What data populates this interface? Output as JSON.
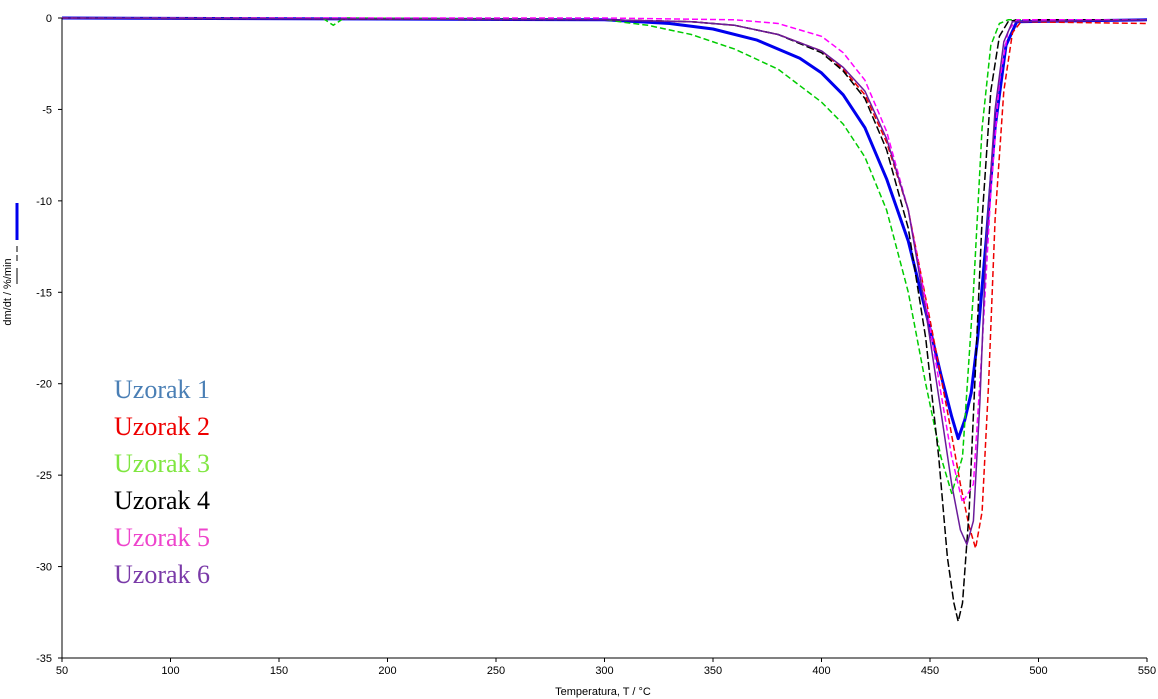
{
  "chart_data": {
    "type": "line",
    "title": "",
    "xlabel": "Temperatura, T / °C",
    "ylabel": "dm/dt / %/min",
    "xlim": [
      50,
      550
    ],
    "ylim": [
      -35,
      0
    ],
    "x_ticks": [
      50,
      100,
      150,
      200,
      250,
      300,
      350,
      400,
      450,
      500,
      550
    ],
    "y_ticks": [
      0,
      -5,
      -10,
      -15,
      -20,
      -25,
      -30,
      -35
    ],
    "grid": false,
    "legend_position": "bottom-left",
    "series": [
      {
        "name": "Uzorak 1",
        "color": "#0000ee",
        "label_color": "#4a7fb5",
        "dash": "solid",
        "x": [
          50,
          300,
          330,
          350,
          370,
          390,
          400,
          410,
          420,
          430,
          440,
          450,
          455,
          460,
          463,
          466,
          469,
          472,
          476,
          480,
          485,
          490,
          550
        ],
        "y": [
          0,
          -0.1,
          -0.3,
          -0.6,
          -1.2,
          -2.2,
          -3.0,
          -4.2,
          -6.0,
          -8.8,
          -12.2,
          -17.0,
          -19.5,
          -21.8,
          -23.0,
          -22.0,
          -20.5,
          -17.5,
          -12.0,
          -6.0,
          -1.5,
          -0.2,
          -0.1
        ]
      },
      {
        "name": "Uzorak 2",
        "color": "#ee0000",
        "label_color": "#ee0000",
        "dash": "6,3",
        "x": [
          50,
          300,
          340,
          360,
          380,
          400,
          410,
          420,
          430,
          440,
          450,
          458,
          464,
          468,
          471,
          474,
          477,
          480,
          484,
          488,
          492,
          550
        ],
        "y": [
          0,
          -0.1,
          -0.2,
          -0.4,
          -0.9,
          -1.8,
          -2.8,
          -4.2,
          -6.8,
          -10.5,
          -16.5,
          -21.5,
          -25.5,
          -27.8,
          -29.0,
          -27.0,
          -20.0,
          -11.0,
          -4.0,
          -0.8,
          -0.2,
          -0.3
        ]
      },
      {
        "name": "Uzorak 3",
        "color": "#00cc00",
        "label_color": "#7fe640",
        "dash": "6,3",
        "x": [
          50,
          170,
          175,
          180,
          300,
          320,
          340,
          360,
          380,
          400,
          410,
          420,
          430,
          440,
          448,
          455,
          460,
          465,
          470,
          474,
          478,
          482,
          486,
          550
        ],
        "y": [
          0,
          0,
          -0.4,
          0,
          -0.1,
          -0.4,
          -0.9,
          -1.7,
          -2.8,
          -4.6,
          -5.8,
          -7.6,
          -10.5,
          -15.0,
          -20.0,
          -24.0,
          -26.0,
          -24.0,
          -15.0,
          -6.0,
          -1.5,
          -0.3,
          -0.1,
          -0.1
        ]
      },
      {
        "name": "Uzorak 4",
        "color": "#000000",
        "label_color": "#000000",
        "dash": "8,3",
        "x": [
          50,
          300,
          340,
          360,
          380,
          400,
          410,
          420,
          430,
          440,
          448,
          454,
          458,
          461,
          463,
          465,
          468,
          471,
          474,
          478,
          482,
          486,
          490,
          550
        ],
        "y": [
          0,
          -0.1,
          -0.2,
          -0.4,
          -0.9,
          -1.9,
          -2.9,
          -4.4,
          -7.2,
          -11.5,
          -17.5,
          -24.0,
          -29.5,
          -32.0,
          -33.0,
          -32.0,
          -27.0,
          -19.0,
          -11.0,
          -4.0,
          -1.0,
          -0.2,
          -0.1,
          -0.1
        ]
      },
      {
        "name": "Uzorak 5",
        "color": "#ff00ff",
        "label_color": "#ee44cc",
        "dash": "6,3",
        "x": [
          50,
          300,
          360,
          380,
          400,
          410,
          420,
          430,
          440,
          448,
          455,
          460,
          465,
          470,
          474,
          478,
          482,
          486,
          490,
          550
        ],
        "y": [
          0,
          0,
          -0.1,
          -0.3,
          -1.0,
          -1.9,
          -3.4,
          -6.2,
          -10.5,
          -15.5,
          -20.5,
          -24.0,
          -26.5,
          -25.5,
          -18.0,
          -9.5,
          -3.5,
          -0.7,
          -0.1,
          -0.1
        ]
      },
      {
        "name": "Uzorak 6",
        "color": "#6a1b9a",
        "label_color": "#7a3aa8",
        "dash": "solid",
        "x": [
          50,
          300,
          340,
          360,
          380,
          400,
          410,
          420,
          430,
          440,
          448,
          455,
          460,
          464,
          467,
          470,
          473,
          476,
          480,
          484,
          488,
          550
        ],
        "y": [
          0,
          -0.1,
          -0.2,
          -0.4,
          -0.9,
          -1.8,
          -2.7,
          -4.0,
          -6.6,
          -10.5,
          -16.0,
          -21.5,
          -25.5,
          -28.0,
          -28.8,
          -27.5,
          -21.0,
          -12.0,
          -5.0,
          -1.3,
          -0.2,
          -0.1
        ]
      }
    ]
  }
}
